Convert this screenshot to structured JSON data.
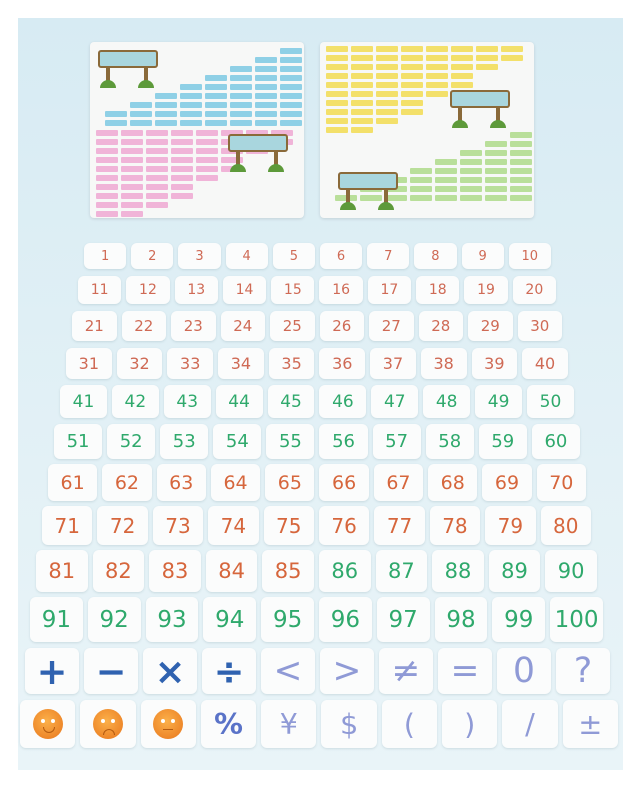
{
  "number_cards": [
    "1",
    "2",
    "3",
    "4",
    "5",
    "6",
    "7",
    "8",
    "9",
    "10",
    "11",
    "12",
    "13",
    "14",
    "15",
    "16",
    "17",
    "18",
    "19",
    "20",
    "21",
    "22",
    "23",
    "24",
    "25",
    "26",
    "27",
    "28",
    "29",
    "30",
    "31",
    "32",
    "33",
    "34",
    "35",
    "36",
    "37",
    "38",
    "39",
    "40",
    "41",
    "42",
    "43",
    "44",
    "45",
    "46",
    "47",
    "48",
    "49",
    "50",
    "51",
    "52",
    "53",
    "54",
    "55",
    "56",
    "57",
    "58",
    "59",
    "60",
    "61",
    "62",
    "63",
    "64",
    "65",
    "66",
    "67",
    "68",
    "69",
    "70",
    "71",
    "72",
    "73",
    "74",
    "75",
    "76",
    "77",
    "78",
    "79",
    "80",
    "81",
    "82",
    "83",
    "84",
    "85",
    "86",
    "87",
    "88",
    "89",
    "90",
    "91",
    "92",
    "93",
    "94",
    "95",
    "96",
    "97",
    "98",
    "99",
    "100"
  ],
  "symbol_cards": [
    "+",
    "−",
    "×",
    "÷",
    "<",
    ">",
    "≠",
    "=",
    "0",
    "?"
  ],
  "extra_cards": [
    {
      "type": "face",
      "mood": "happy"
    },
    {
      "type": "face",
      "mood": "sad"
    },
    {
      "type": "face",
      "mood": "neutral"
    },
    {
      "type": "text",
      "value": "%"
    },
    {
      "type": "text",
      "value": "¥"
    },
    {
      "type": "text",
      "value": "$"
    },
    {
      "type": "text",
      "value": "("
    },
    {
      "type": "text",
      "value": ")"
    },
    {
      "type": "text",
      "value": "/"
    },
    {
      "type": "text",
      "value": "±"
    }
  ],
  "colors": {
    "red": "#cf6a55",
    "green": "#2fa96c",
    "orange_red": "#d6663c",
    "dark_blue": "#2f62b0",
    "lavender": "#8f9ad6",
    "face_orange": "#ee8426",
    "background": "#dcedf4"
  }
}
